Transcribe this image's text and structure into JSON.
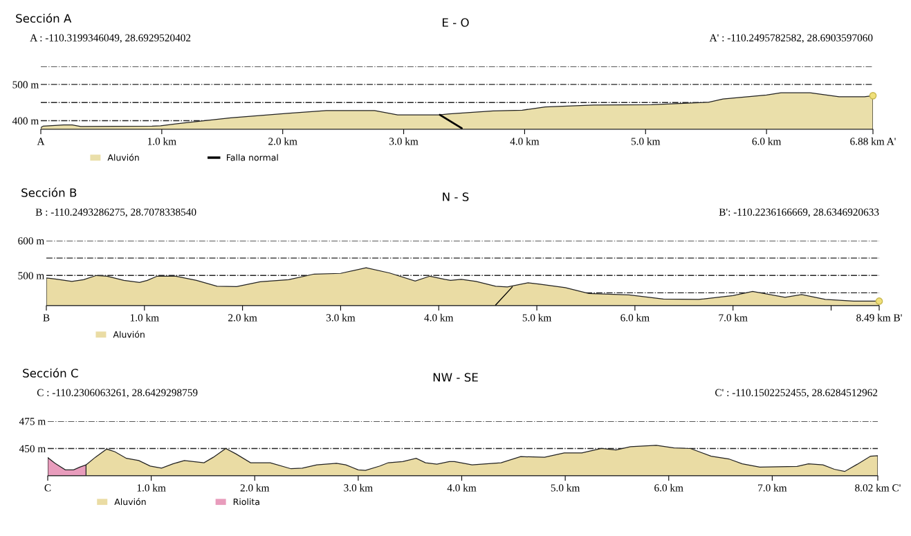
{
  "chart_data": [
    {
      "type": "area",
      "title": "Sección A",
      "subtitle": "E - O",
      "annotations": [
        "A : -110.3199346049, 28.6929520402",
        "A' : -110.2495782582, 28.6903597060"
      ],
      "xlim": [
        0,
        6.88
      ],
      "xticks": [
        {
          "value": 0,
          "label": "A"
        },
        {
          "value": 1,
          "label": "1.0 km"
        },
        {
          "value": 2,
          "label": "2.0 km"
        },
        {
          "value": 3,
          "label": "3.0 km"
        },
        {
          "value": 4,
          "label": "4.0 km"
        },
        {
          "value": 5,
          "label": "5.0 km"
        },
        {
          "value": 6,
          "label": "6.0 km"
        },
        {
          "value": 6.88,
          "label": "6.88 km A'"
        }
      ],
      "ylim": [
        376,
        550
      ],
      "yticks": [
        {
          "value": 400,
          "label": "400 m"
        },
        {
          "value": 450,
          "label": null
        },
        {
          "value": 500,
          "label": "500 m"
        },
        {
          "value": 550,
          "label": null
        }
      ],
      "grid": "y",
      "legend": "bottom left",
      "series": [
        {
          "name": "Aluvión",
          "color": "#eadfaa",
          "x": [
            0,
            0.02,
            0.19,
            0.26,
            0.33,
            0.92,
            0.99,
            1.19,
            1.57,
            2.04,
            2.36,
            2.76,
            2.95,
            3.29,
            3.38,
            3.74,
            3.98,
            4.17,
            4.57,
            5.05,
            5.52,
            5.64,
            6.0,
            6.12,
            6.36,
            6.6,
            6.81,
            6.88
          ],
          "values": [
            381,
            385,
            388,
            388,
            384,
            385,
            386,
            394,
            408,
            420,
            428,
            428,
            416,
            416,
            419,
            427,
            429,
            438,
            443,
            444,
            451,
            460,
            471,
            477,
            477,
            466,
            466,
            469
          ]
        },
        {
          "name": "Falla normal",
          "type": "line",
          "color": "#000000",
          "x": [
            3.3,
            3.48
          ],
          "values": [
            416,
            379
          ]
        },
        {
          "type": "scatter",
          "color": "#f0e07a",
          "x": [
            6.88
          ],
          "values": [
            469
          ]
        }
      ]
    },
    {
      "type": "area",
      "title": "Sección B",
      "subtitle": "N - S",
      "annotations": [
        "B : -110.2493286275, 28.7078338540",
        "B': -110.2236166669, 28.6346920633"
      ],
      "xlim": [
        0,
        8.49
      ],
      "xticks": [
        {
          "value": 0,
          "label": "B"
        },
        {
          "value": 1,
          "label": "1.0 km"
        },
        {
          "value": 2,
          "label": "2.0 km"
        },
        {
          "value": 3,
          "label": "3.0 km"
        },
        {
          "value": 4,
          "label": "4.0 km"
        },
        {
          "value": 5,
          "label": "5.0 km"
        },
        {
          "value": 6,
          "label": "6.0 km"
        },
        {
          "value": 7,
          "label": "7.0 km"
        },
        {
          "value": 8,
          "label": null
        },
        {
          "value": 8.49,
          "label": "8.49 km B'"
        }
      ],
      "ylim": [
        413,
        600
      ],
      "yticks": [
        {
          "value": 450,
          "label": null
        },
        {
          "value": 500,
          "label": "500 m"
        },
        {
          "value": 550,
          "label": null
        },
        {
          "value": 600,
          "label": "600 m"
        }
      ],
      "grid": "y",
      "legend": "bottom left",
      "series": [
        {
          "name": "Aluvión",
          "color": "#eadca4",
          "x": [
            0,
            0.09,
            0.26,
            0.38,
            0.51,
            0.62,
            0.79,
            0.95,
            1.03,
            1.13,
            1.32,
            1.53,
            1.74,
            1.94,
            2.18,
            2.47,
            2.73,
            3.0,
            3.26,
            3.5,
            3.76,
            3.91,
            4.06,
            4.12,
            4.23,
            4.38,
            4.58,
            4.7,
            4.91,
            5.03,
            5.29,
            5.53,
            5.94,
            6.29,
            6.65,
            7.0,
            7.2,
            7.53,
            7.7,
            7.94,
            8.23,
            8.49
          ],
          "values": [
            493,
            490,
            483,
            488,
            500,
            498,
            486,
            480,
            486,
            498,
            498,
            486,
            469,
            468,
            482,
            488,
            504,
            506,
            522,
            507,
            484,
            498,
            489,
            486,
            489,
            483,
            469,
            467,
            479,
            475,
            465,
            448,
            444,
            432,
            431,
            442,
            454,
            437,
            445,
            431,
            426,
            426
          ]
        },
        {
          "type": "line",
          "color": "#000000",
          "x": [
            4.58,
            4.75
          ],
          "values": [
            415,
            467
          ]
        },
        {
          "type": "scatter",
          "color": "#f0e07a",
          "x": [
            8.49
          ],
          "values": [
            426
          ]
        }
      ]
    },
    {
      "type": "area",
      "title": "Sección C",
      "subtitle": "NW - SE",
      "annotations": [
        "C : -110.2306063261, 28.6429298759",
        "C' : -110.1502252455, 28.6284512962"
      ],
      "xlim": [
        0,
        8.02
      ],
      "xticks": [
        {
          "value": 0,
          "label": "C"
        },
        {
          "value": 1,
          "label": "1.0 km"
        },
        {
          "value": 2,
          "label": "2.0 km"
        },
        {
          "value": 3,
          "label": "3.0 km"
        },
        {
          "value": 4,
          "label": "4.0 km"
        },
        {
          "value": 5,
          "label": "5.0 km"
        },
        {
          "value": 6,
          "label": "6.0 km"
        },
        {
          "value": 7,
          "label": "7.0 km"
        },
        {
          "value": 8.02,
          "label": "8.02 km C'"
        }
      ],
      "ylim": [
        425,
        475
      ],
      "yticks": [
        {
          "value": 450,
          "label": "450 m"
        },
        {
          "value": 475,
          "label": "475 m"
        }
      ],
      "grid": "y",
      "legend": "bottom left",
      "series": [
        {
          "name": "Aluvión",
          "color": "#eadca4",
          "x": [
            0.37,
            0.46,
            0.57,
            0.65,
            0.76,
            0.88,
            0.99,
            1.1,
            1.21,
            1.32,
            1.51,
            1.6,
            1.72,
            1.82,
            1.96,
            2.15,
            2.35,
            2.46,
            2.6,
            2.79,
            2.88,
            3.0,
            3.07,
            3.21,
            3.29,
            3.43,
            3.56,
            3.65,
            3.76,
            3.88,
            3.93,
            4.1,
            4.38,
            4.57,
            4.8,
            4.99,
            5.16,
            5.35,
            5.49,
            5.63,
            5.88,
            6.05,
            6.21,
            6.41,
            6.58,
            6.71,
            6.88,
            7.24,
            7.35,
            7.49,
            7.6,
            7.7,
            7.82,
            7.95,
            8.02
          ],
          "values": [
            435,
            442,
            449.5,
            447,
            441,
            439,
            434,
            432,
            436,
            439,
            437,
            442,
            450,
            445,
            437,
            437,
            431.5,
            432,
            435,
            436.5,
            435,
            430.5,
            430,
            434,
            437,
            438,
            441,
            437,
            435.7,
            438,
            438,
            435,
            437,
            442.6,
            442,
            446,
            446,
            450,
            448.7,
            451.6,
            453,
            450.5,
            450,
            443,
            440.5,
            436,
            433,
            433.7,
            436,
            435,
            431,
            429,
            435.5,
            443,
            443.4
          ]
        },
        {
          "name": "Riolita",
          "color": "#e89cbc",
          "x": [
            0,
            0.07,
            0.17,
            0.25,
            0.31,
            0.37
          ],
          "values": [
            441.7,
            436.5,
            430.5,
            430.5,
            433,
            435
          ]
        }
      ]
    }
  ]
}
